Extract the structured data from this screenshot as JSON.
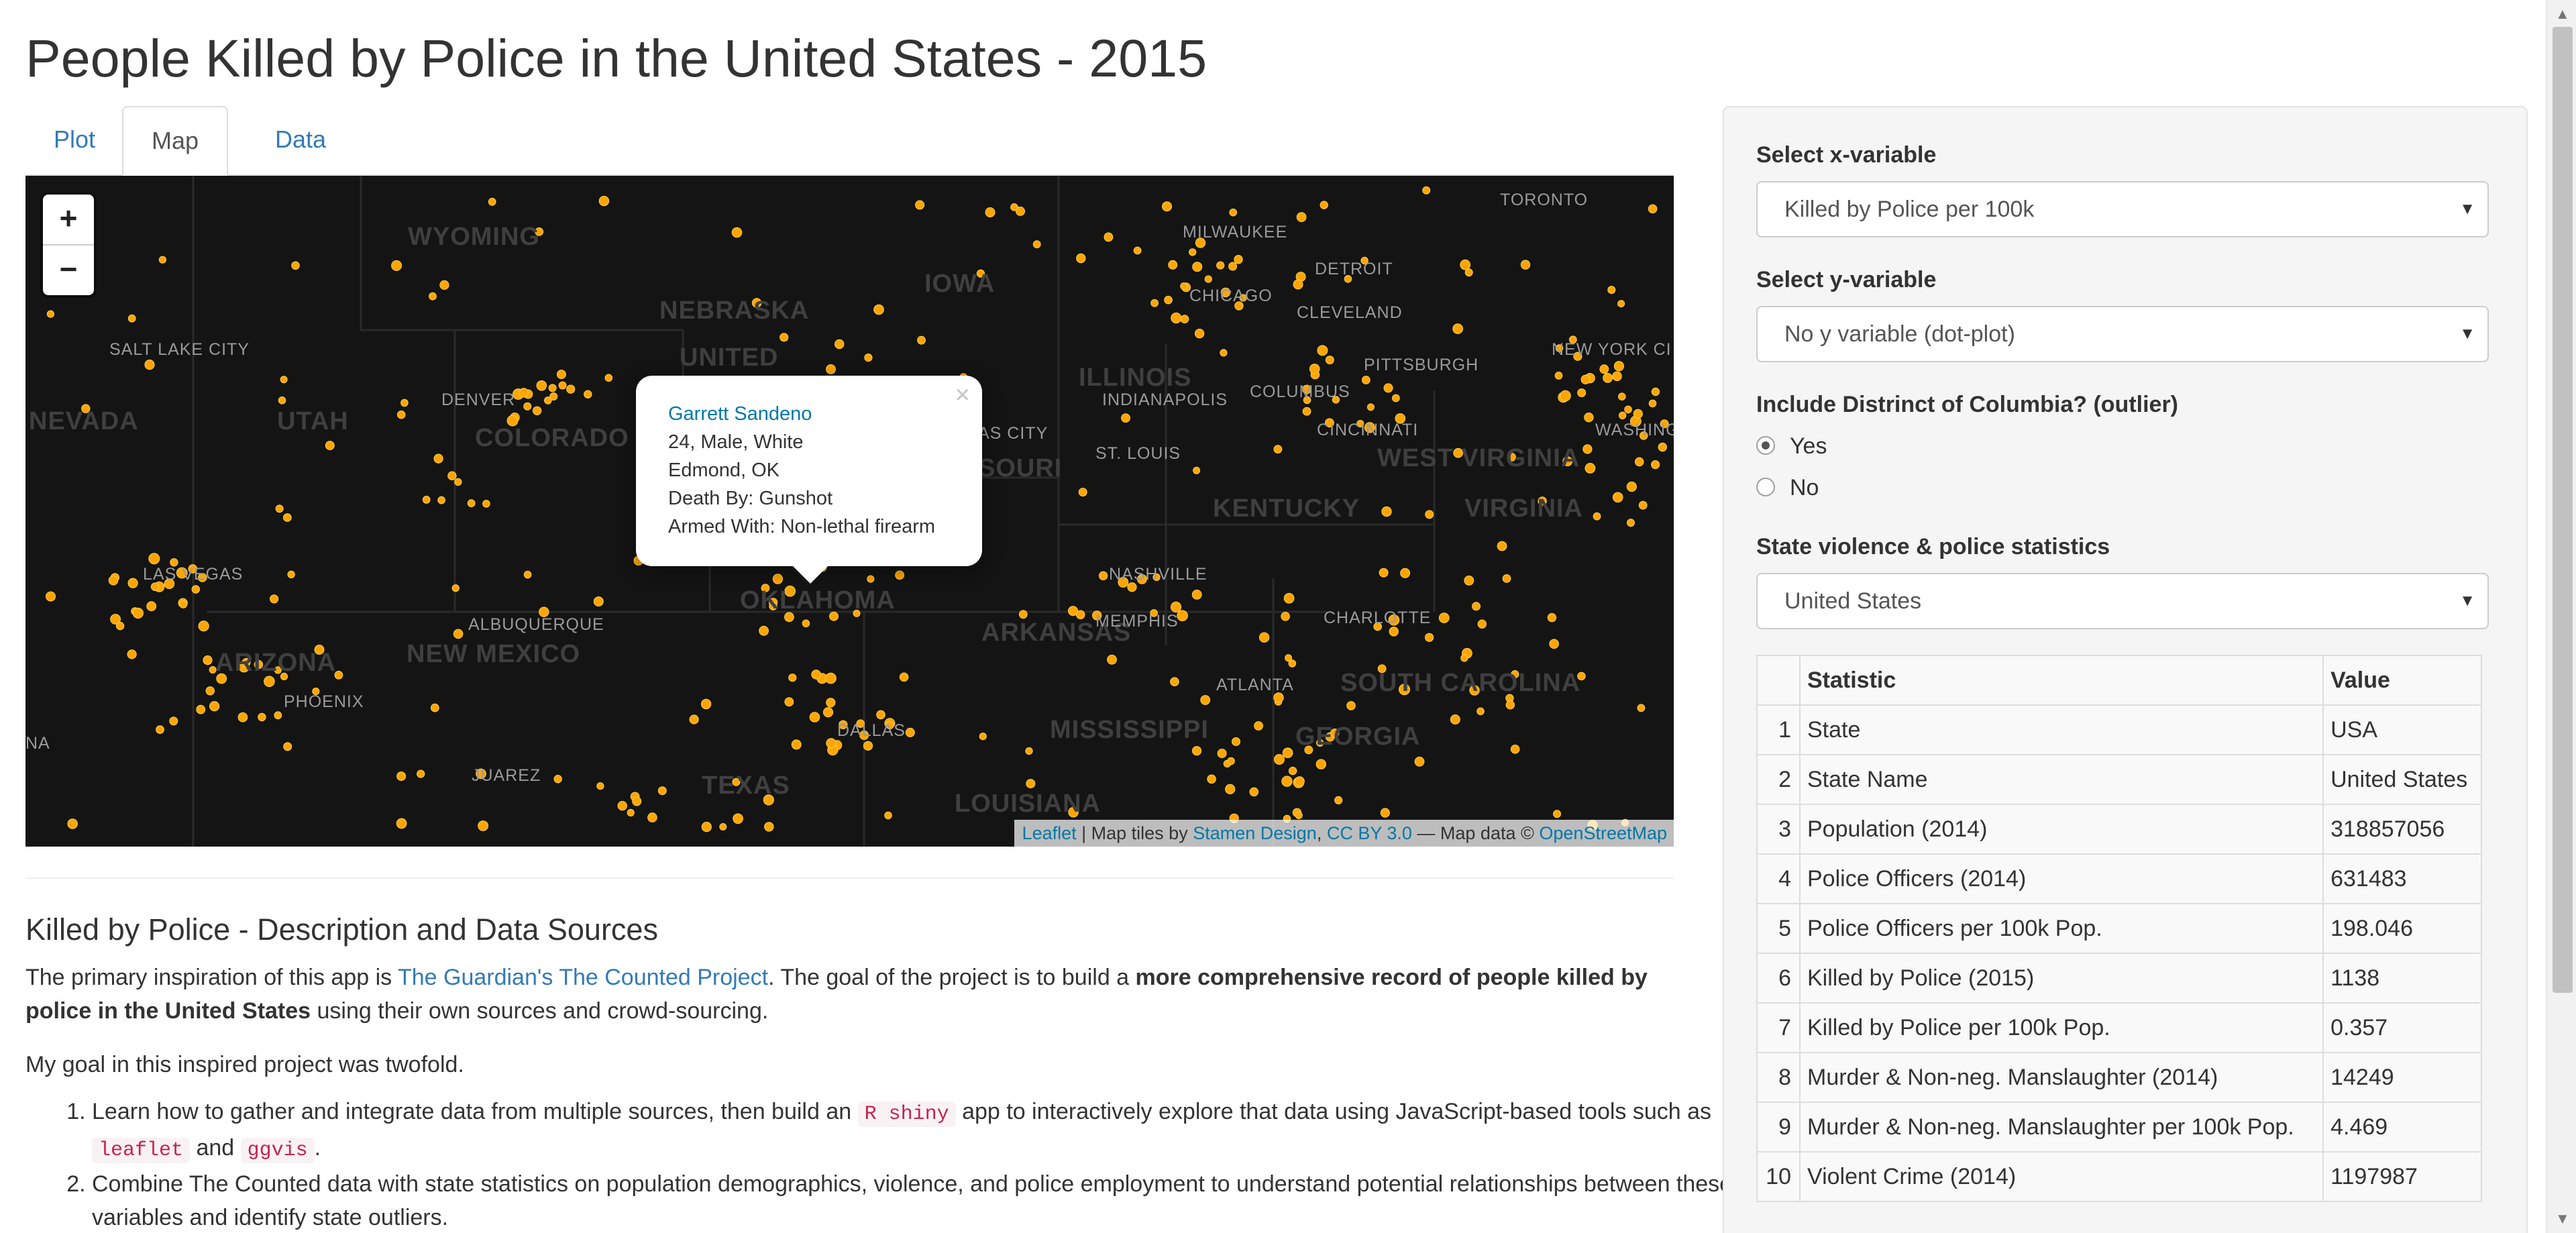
{
  "page_title": "People Killed by Police in the United States - 2015",
  "tabs": [
    {
      "label": "Plot",
      "active": false
    },
    {
      "label": "Map",
      "active": true
    },
    {
      "label": "Data",
      "active": false
    }
  ],
  "map": {
    "zoom_in": "+",
    "zoom_out": "−",
    "popup": {
      "name": "Garrett Sandeno",
      "line2": "24, Male, White",
      "line3": "Edmond, OK",
      "line4": "Death By: Gunshot",
      "line5": "Armed With: Non-lethal firearm",
      "close": "×"
    },
    "attribution": {
      "leaflet": "Leaflet",
      "sep1": " | Map tiles by ",
      "stamen": "Stamen Design",
      "comma": ", ",
      "ccby": "CC BY 3.0",
      "sep2": " — Map data © ",
      "osm": "OpenStreetMap"
    },
    "state_labels": [
      "WYOMING",
      "NEBRASKA",
      "UNITED",
      "UTAH",
      "COLORADO",
      "NEVADA",
      "IOWA",
      "ILLINOIS",
      "SOURI",
      "KENTUCKY",
      "WEST VIRGINIA",
      "VIRGINIA",
      "OKLAHOMA",
      "ARKANSAS",
      "ARIZONA",
      "NEW MEXICO",
      "TEXAS",
      "MISSISSIPPI",
      "GEORGIA",
      "SOUTH CAROLINA",
      "LOUISIANA"
    ],
    "city_labels": [
      "SALT LAKE CITY",
      "DENVER",
      "LAS VEGAS",
      "ALBUQUERQUE",
      "PHOENIX",
      "JUAREZ",
      "DALLAS",
      "MEMPHIS",
      "NASHVILLE",
      "ST. LOUIS",
      "AS CITY",
      "INDIANAPOLIS",
      "COLUMBUS",
      "CINCINNATI",
      "CHICAGO",
      "DETROIT",
      "CLEVELAND",
      "PITTSBURGH",
      "MILWAUKEE",
      "TORONTO",
      "NEW YORK CI",
      "WASHING D.C.",
      "CHARLOTTE",
      "ATLANTA",
      "NA"
    ],
    "marker_color": "#ffa500",
    "tile_color": "#141414"
  },
  "description": {
    "heading": "Killed by Police - Description and Data Sources",
    "p1_a": "The primary inspiration of this app is ",
    "p1_link": "The Guardian's The Counted Project",
    "p1_b": ". The goal of the project is to build a ",
    "p1_bold": "more comprehensive record of people killed by police in the United States",
    "p1_c": " using their own sources and crowd-sourcing.",
    "p2": "My goal in this inspired project was twofold.",
    "li1_a": "Learn how to gather and integrate data from multiple sources, then build an ",
    "li1_code1": "R shiny",
    "li1_b": " app to interactively explore that data using JavaScript-based tools such as ",
    "li1_code2": "leaflet",
    "li1_c": " and ",
    "li1_code3": "ggvis",
    "li1_d": ".",
    "li2": "Combine The Counted data with state statistics on population demographics, violence, and police employment to understand potential relationships between these variables and identify state outliers."
  },
  "sidebar": {
    "x_label": "Select x-variable",
    "x_value": "Killed by Police per 100k",
    "y_label": "Select y-variable",
    "y_value": "No y variable (dot-plot)",
    "dc_label": "Include Distrinct of Columbia? (outlier)",
    "dc_yes": "Yes",
    "dc_no": "No",
    "dc_selected": "Yes",
    "state_label": "State violence & police statistics",
    "state_value": "United States",
    "caret": "▼",
    "table": {
      "headers": [
        "",
        "Statistic",
        "Value"
      ],
      "rows": [
        [
          "1",
          "State",
          "USA"
        ],
        [
          "2",
          "State Name",
          "United States"
        ],
        [
          "3",
          "Population (2014)",
          "318857056"
        ],
        [
          "4",
          "Police Officers (2014)",
          "631483"
        ],
        [
          "5",
          "Police Officers per 100k Pop.",
          "198.046"
        ],
        [
          "6",
          "Killed by Police (2015)",
          "1138"
        ],
        [
          "7",
          "Killed by Police per 100k Pop.",
          "0.357"
        ],
        [
          "8",
          "Murder & Non-neg. Manslaughter (2014)",
          "14249"
        ],
        [
          "9",
          "Murder & Non-neg. Manslaughter per 100k Pop.",
          "4.469"
        ],
        [
          "10",
          "Violent Crime (2014)",
          "1197987"
        ]
      ]
    }
  }
}
